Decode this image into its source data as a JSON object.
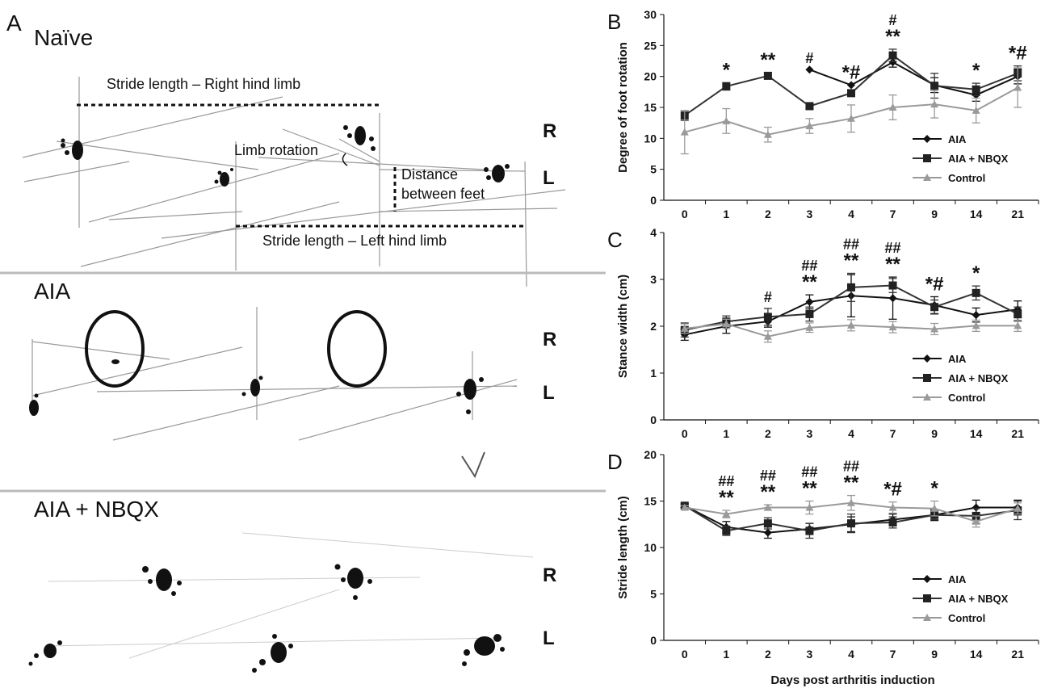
{
  "panel_a": {
    "letter": "A",
    "rows": [
      {
        "title": "Naïve",
        "right": "R",
        "left": "L"
      },
      {
        "title": "AIA",
        "right": "R",
        "left": "L"
      },
      {
        "title": "AIA + NBQX",
        "right": "R",
        "left": "L"
      }
    ],
    "annotations": {
      "stride_right": "Stride length – Right hind limb",
      "limb_rotation": "Limb rotation",
      "distance_1": "Distance",
      "distance_2": "between feet",
      "stride_left": "Stride length – Left hind limb"
    }
  },
  "common": {
    "xlabel": "Days post arthritis induction",
    "colors": {
      "AIA": "#111111",
      "AIA + NBQX": "#333333",
      "Control": "#9a9a9a"
    }
  },
  "chart_data": [
    {
      "panel": "B",
      "type": "line",
      "ylabel": "Degree of foot rotation",
      "categories": [
        "0",
        "1",
        "2",
        "3",
        "4",
        "7",
        "9",
        "14",
        "21"
      ],
      "ylim": [
        0,
        30
      ],
      "yticks": [
        0,
        5,
        10,
        15,
        20,
        25,
        30
      ],
      "legend_position": "bottom-right",
      "series": [
        {
          "name": "AIA",
          "marker": "diamond",
          "values": [
            null,
            null,
            null,
            21.1,
            18.6,
            22.3,
            18.6,
            17.0,
            20.0
          ],
          "err": [
            0,
            0,
            0,
            0,
            0,
            0.8,
            1.2,
            1.0,
            1.2
          ]
        },
        {
          "name": "AIA + NBQX",
          "marker": "square",
          "values": [
            13.7,
            18.4,
            20.1,
            15.2,
            17.3,
            23.4,
            18.5,
            17.9,
            20.5
          ],
          "err": [
            0.8,
            0.6,
            0.5,
            0.5,
            0.5,
            1.0,
            2.0,
            1.0,
            1.2
          ]
        },
        {
          "name": "Control",
          "marker": "triangle",
          "values": [
            11.0,
            12.8,
            10.6,
            12.0,
            13.2,
            15.0,
            15.5,
            14.5,
            18.2
          ],
          "err": [
            3.5,
            2.0,
            1.2,
            1.2,
            2.2,
            2.0,
            2.2,
            2.0,
            3.2
          ]
        }
      ],
      "significance": [
        {
          "category": "1",
          "lines": [
            "*"
          ]
        },
        {
          "category": "2",
          "lines": [
            "**"
          ]
        },
        {
          "category": "3",
          "lines": [
            "#"
          ]
        },
        {
          "category": "4",
          "lines": [
            "*#"
          ]
        },
        {
          "category": "7",
          "lines": [
            "#",
            "**"
          ]
        },
        {
          "category": "14",
          "lines": [
            "*"
          ]
        },
        {
          "category": "21",
          "lines": [
            "*#"
          ]
        }
      ]
    },
    {
      "panel": "C",
      "type": "line",
      "ylabel": "Stance width (cm)",
      "categories": [
        "0",
        "1",
        "2",
        "3",
        "4",
        "7",
        "9",
        "14",
        "21"
      ],
      "ylim": [
        0,
        4
      ],
      "yticks": [
        0,
        1,
        2,
        3,
        4
      ],
      "legend_position": "bottom-right",
      "series": [
        {
          "name": "AIA",
          "marker": "diamond",
          "values": [
            1.82,
            2.0,
            2.1,
            2.52,
            2.65,
            2.6,
            2.45,
            2.24,
            2.36
          ],
          "err": [
            0.12,
            0.15,
            0.12,
            0.15,
            0.45,
            0.45,
            0.18,
            0.15,
            0.18
          ]
        },
        {
          "name": "AIA + NBQX",
          "marker": "square",
          "values": [
            1.92,
            2.1,
            2.2,
            2.26,
            2.83,
            2.87,
            2.41,
            2.71,
            2.26
          ],
          "err": [
            0.15,
            0.12,
            0.18,
            0.15,
            0.3,
            0.15,
            0.15,
            0.15,
            0.15
          ]
        },
        {
          "name": "Control",
          "marker": "triangle",
          "values": [
            1.95,
            2.05,
            1.78,
            1.97,
            2.02,
            1.98,
            1.94,
            2.01,
            2.01
          ],
          "err": [
            0.1,
            0.1,
            0.12,
            0.1,
            0.12,
            0.12,
            0.12,
            0.12,
            0.12
          ]
        }
      ],
      "significance": [
        {
          "category": "2",
          "lines": [
            "#"
          ]
        },
        {
          "category": "3",
          "lines": [
            "##",
            "**"
          ]
        },
        {
          "category": "4",
          "lines": [
            "##",
            "**"
          ]
        },
        {
          "category": "7",
          "lines": [
            "##",
            "**"
          ]
        },
        {
          "category": "9",
          "lines": [
            "*#"
          ]
        },
        {
          "category": "14",
          "lines": [
            "*"
          ]
        }
      ]
    },
    {
      "panel": "D",
      "type": "line",
      "ylabel": "Stride length (cm)",
      "categories": [
        "0",
        "1",
        "2",
        "3",
        "4",
        "7",
        "9",
        "14",
        "21"
      ],
      "ylim": [
        0,
        20
      ],
      "yticks": [
        0,
        5,
        10,
        15,
        20
      ],
      "legend_position": "bottom-right",
      "series": [
        {
          "name": "AIA",
          "marker": "diamond",
          "values": [
            14.5,
            12.2,
            11.6,
            12.0,
            12.5,
            13.0,
            13.5,
            14.3,
            14.3
          ],
          "err": [
            0.2,
            0.6,
            0.6,
            0.6,
            0.8,
            0.6,
            0.6,
            0.8,
            0.8
          ]
        },
        {
          "name": "AIA + NBQX",
          "marker": "square",
          "values": [
            14.5,
            11.8,
            12.6,
            11.8,
            12.6,
            12.7,
            13.5,
            13.4,
            14.0
          ],
          "err": [
            0.2,
            0.5,
            0.6,
            0.8,
            1.0,
            0.6,
            0.5,
            0.8,
            1.0
          ]
        },
        {
          "name": "Control",
          "marker": "triangle",
          "values": [
            14.3,
            13.6,
            14.3,
            14.3,
            14.8,
            14.3,
            14.2,
            12.8,
            14.2
          ],
          "err": [
            0.2,
            0.4,
            0.3,
            0.7,
            0.8,
            0.6,
            0.8,
            0.6,
            0.6
          ]
        }
      ],
      "significance": [
        {
          "category": "1",
          "lines": [
            "##",
            "**"
          ]
        },
        {
          "category": "2",
          "lines": [
            "##",
            "**"
          ]
        },
        {
          "category": "3",
          "lines": [
            "##",
            "**"
          ]
        },
        {
          "category": "4",
          "lines": [
            "##",
            "**"
          ]
        },
        {
          "category": "7",
          "lines": [
            "*#"
          ]
        },
        {
          "category": "9",
          "lines": [
            "*"
          ]
        }
      ]
    }
  ]
}
